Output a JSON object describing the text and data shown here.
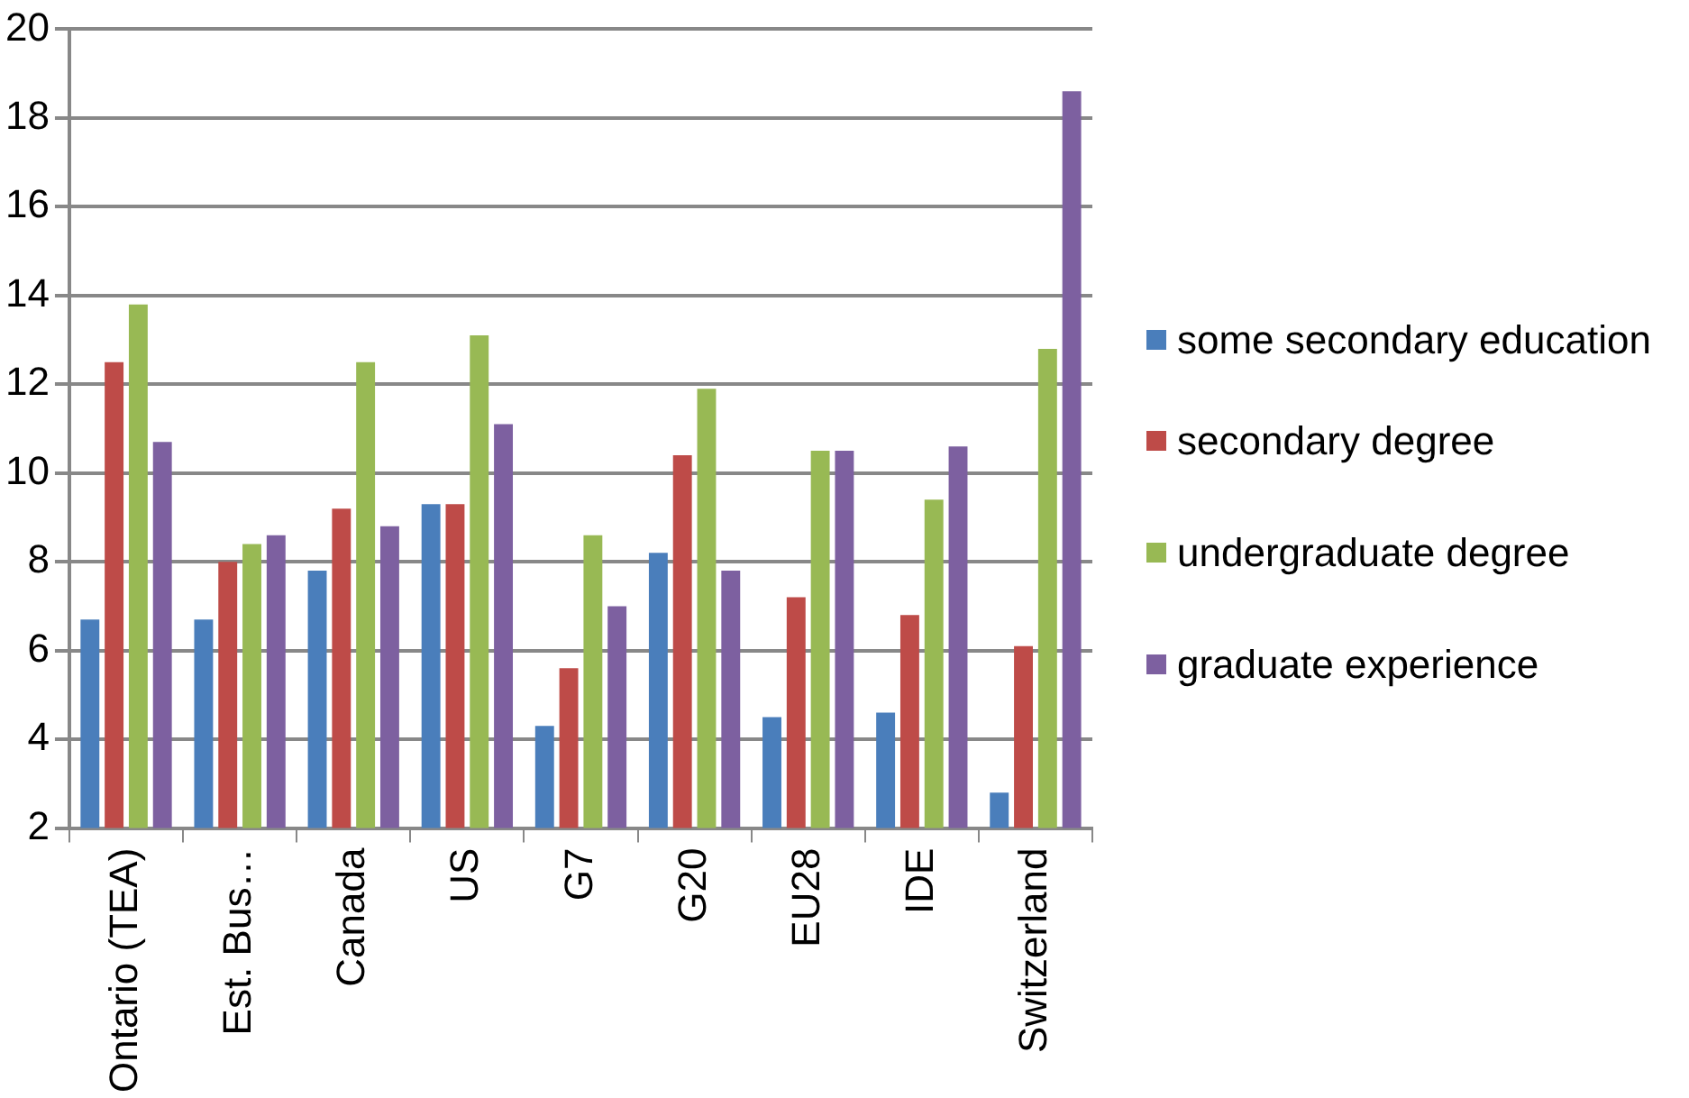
{
  "chart_data": {
    "type": "bar",
    "categories": [
      "Ontario (TEA)",
      "Est. Bus…",
      "Canada",
      "US",
      "G7",
      "G20",
      "EU28",
      "IDE",
      "Switzerland"
    ],
    "series": [
      {
        "name": "some secondary education",
        "color": "#4a7ebb",
        "values": [
          6.7,
          6.7,
          7.8,
          9.3,
          4.3,
          8.2,
          4.5,
          4.6,
          2.8
        ]
      },
      {
        "name": "secondary degree",
        "color": "#be4b48",
        "values": [
          12.5,
          8.0,
          9.2,
          9.3,
          5.6,
          10.4,
          7.2,
          6.8,
          6.1
        ]
      },
      {
        "name": "undergraduate degree",
        "color": "#98b954",
        "values": [
          13.8,
          8.4,
          12.5,
          13.1,
          8.6,
          11.9,
          10.5,
          9.4,
          12.8
        ]
      },
      {
        "name": "graduate experience",
        "color": "#7d60a0",
        "values": [
          10.7,
          8.6,
          8.8,
          11.1,
          7.0,
          7.8,
          10.5,
          10.6,
          18.6
        ]
      }
    ],
    "ylim": [
      2,
      20
    ],
    "yticks": [
      2,
      4,
      6,
      8,
      10,
      12,
      14,
      16,
      18,
      20
    ],
    "grid": "y",
    "legend": "right"
  }
}
